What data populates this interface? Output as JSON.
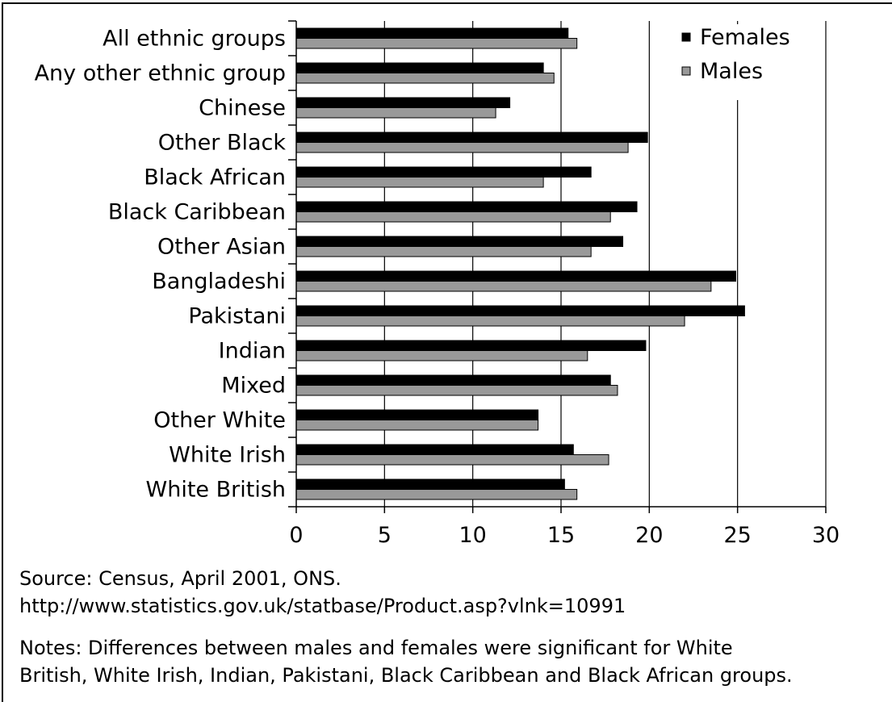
{
  "chart_data": {
    "type": "bar",
    "orientation": "horizontal",
    "categories": [
      "All ethnic groups",
      "Any other ethnic group",
      "Chinese",
      "Other Black",
      "Black African",
      "Black Caribbean",
      "Other Asian",
      "Bangladeshi",
      "Pakistani",
      "Indian",
      "Mixed",
      "Other White",
      "White Irish",
      "White British"
    ],
    "series": [
      {
        "name": "Females",
        "color": "#000000",
        "values": [
          15.4,
          14.0,
          12.1,
          19.9,
          16.7,
          19.3,
          18.5,
          24.9,
          25.4,
          19.8,
          17.8,
          13.7,
          15.7,
          15.2
        ]
      },
      {
        "name": "Males",
        "color": "#999999",
        "values": [
          15.9,
          14.6,
          11.3,
          18.8,
          14.0,
          17.8,
          16.7,
          23.5,
          22.0,
          16.5,
          18.2,
          13.7,
          17.7,
          15.9
        ]
      }
    ],
    "xticks": [
      "0",
      "5",
      "10",
      "15",
      "20",
      "25",
      "30"
    ],
    "xlim": [
      0,
      30
    ],
    "grid": true,
    "legend_position": "top-right"
  },
  "source": {
    "line1": "Source: Census, April 2001, ONS.",
    "line2": "http://www.statistics.gov.uk/statbase/Product.asp?vlnk=10991"
  },
  "notes": {
    "line1": "Notes: Differences between males and females were significant for White",
    "line2": "British, White Irish, Indian, Pakistani, Black Caribbean and Black African groups."
  }
}
